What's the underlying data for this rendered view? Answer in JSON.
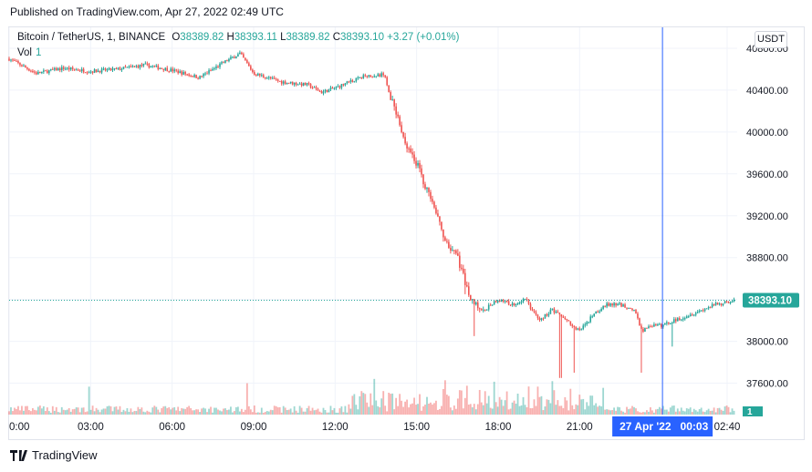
{
  "publish_line": "Published on TradingView.com, Apr 27, 2022 02:49 UTC",
  "legend": {
    "symbol": "Bitcoin / TetherUS, 1, BINANCE",
    "o_label": "O",
    "o": "38389.82",
    "h_label": "H",
    "h": "38393.11",
    "l_label": "L",
    "l": "38389.82",
    "c_label": "C",
    "c": "38393.10",
    "change": "+3.27 (+0.01%)",
    "vol_label": "Vol",
    "vol_value": "1"
  },
  "currency_button": "USDT",
  "footer_brand": "TradingView",
  "colors": {
    "up": "#26a69a",
    "down": "#ef5350",
    "crosshair": "#2962ff",
    "grid": "#f0f3fa"
  },
  "chart_data": {
    "type": "candlestick",
    "y_ticks": [
      "37600.00",
      "38000.00",
      "38400.00",
      "38800.00",
      "39200.00",
      "39600.00",
      "40000.00",
      "40400.00",
      "40800.00"
    ],
    "ylim": [
      37300,
      41000
    ],
    "x_ticks": [
      "0:00",
      "03:00",
      "06:00",
      "09:00",
      "12:00",
      "15:00",
      "18:00",
      "21:00",
      "02:40"
    ],
    "last_price_label": "38393.10",
    "last_price": 38393.1,
    "volume_label": "1",
    "crosshair_time_label": "27 Apr '22   00:03",
    "price_path": [
      [
        0,
        40700
      ],
      [
        1.0,
        40560
      ],
      [
        2.0,
        40610
      ],
      [
        3.0,
        40580
      ],
      [
        4.0,
        40600
      ],
      [
        5.0,
        40640
      ],
      [
        6.0,
        40590
      ],
      [
        7.0,
        40520
      ],
      [
        8.0,
        40680
      ],
      [
        8.5,
        40750
      ],
      [
        9.0,
        40560
      ],
      [
        10.0,
        40480
      ],
      [
        11.0,
        40450
      ],
      [
        11.5,
        40380
      ],
      [
        12.0,
        40420
      ],
      [
        13.0,
        40530
      ],
      [
        13.8,
        40550
      ],
      [
        14.2,
        40200
      ],
      [
        14.6,
        39900
      ],
      [
        15.0,
        39700
      ],
      [
        15.6,
        39300
      ],
      [
        16.0,
        39000
      ],
      [
        16.5,
        38800
      ],
      [
        17.0,
        38400
      ],
      [
        17.5,
        38300
      ],
      [
        18.0,
        38400
      ],
      [
        18.5,
        38350
      ],
      [
        19.0,
        38400
      ],
      [
        19.5,
        38200
      ],
      [
        20.0,
        38300
      ],
      [
        20.5,
        38200
      ],
      [
        21.0,
        38100
      ],
      [
        21.5,
        38250
      ],
      [
        22.0,
        38350
      ],
      [
        22.5,
        38350
      ],
      [
        23.0,
        38300
      ],
      [
        23.3,
        38100
      ],
      [
        23.6,
        38150
      ],
      [
        24.0,
        38150
      ],
      [
        24.5,
        38200
      ],
      [
        25.0,
        38250
      ],
      [
        25.5,
        38300
      ],
      [
        26.0,
        38350
      ],
      [
        26.75,
        38393
      ]
    ],
    "wicks_down": [
      [
        16.8,
        38450
      ],
      [
        17.1,
        38050
      ],
      [
        20.3,
        37650
      ],
      [
        20.8,
        37700
      ],
      [
        23.25,
        37700
      ],
      [
        24.4,
        37950
      ]
    ]
  }
}
